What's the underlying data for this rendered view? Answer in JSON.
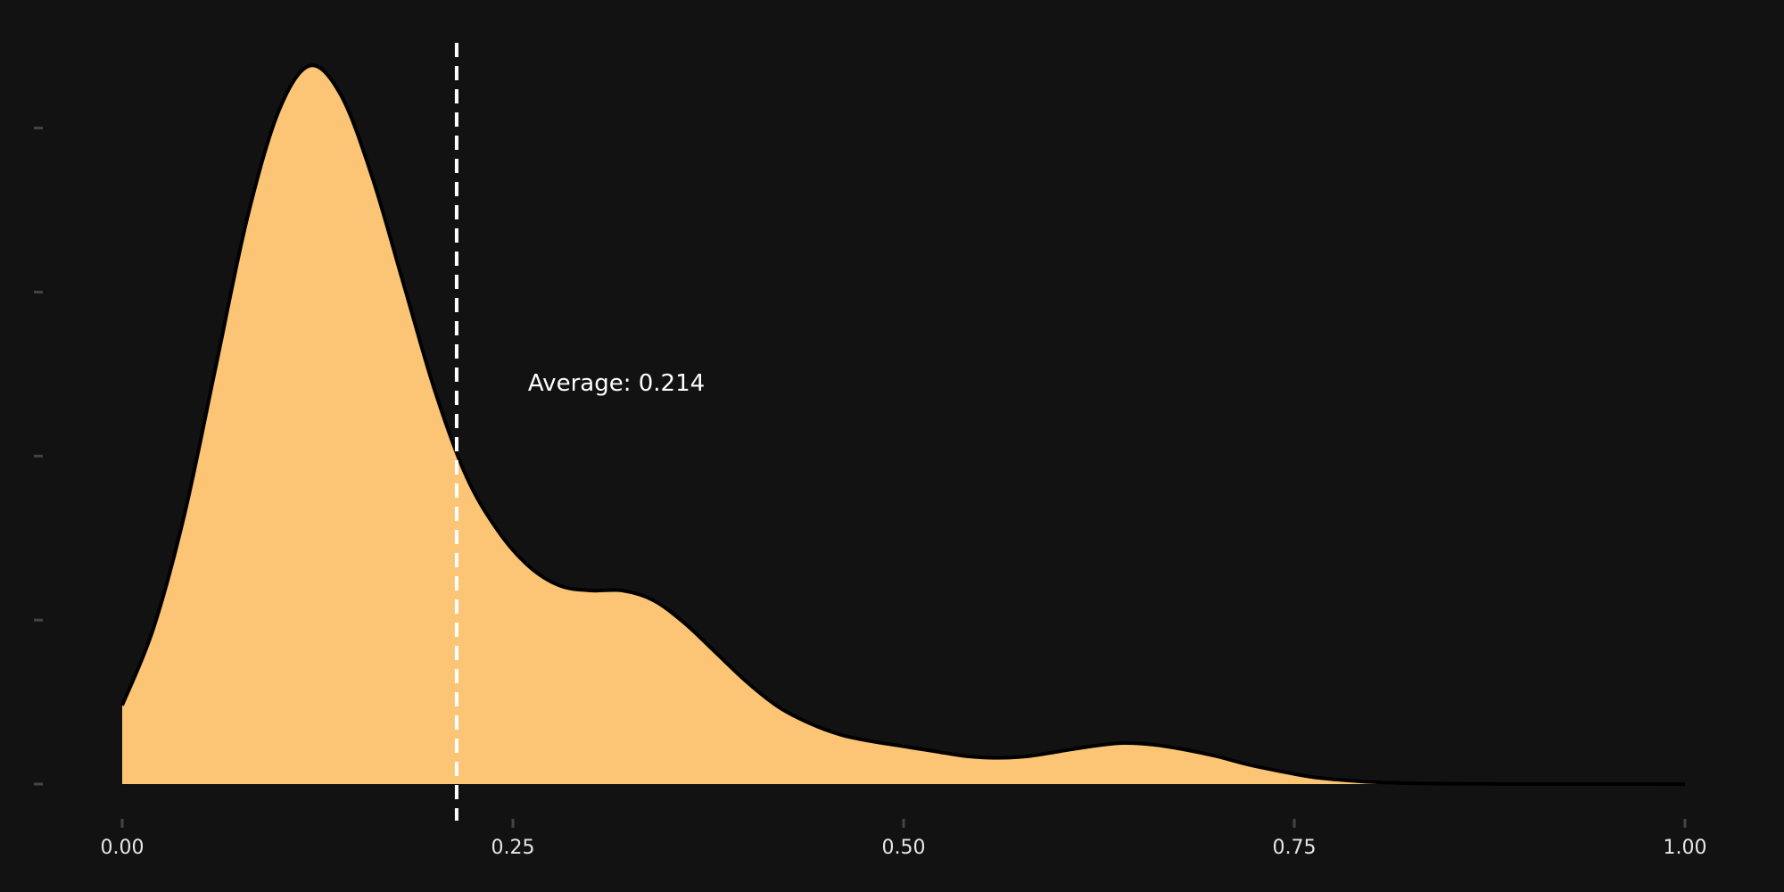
{
  "chart_data": {
    "type": "area",
    "title": "",
    "xlabel": "",
    "ylabel": "",
    "xlim": [
      0,
      1
    ],
    "ylim": [
      0,
      4.4
    ],
    "grid": false,
    "x_ticks": [
      0,
      0.25,
      0.5,
      0.75,
      1
    ],
    "x_tick_labels": [
      "0.00",
      "0.25",
      "0.50",
      "0.75",
      "1.00"
    ],
    "y_ticks": [
      0,
      1,
      2,
      3,
      4
    ],
    "x": [
      0,
      0.02,
      0.04,
      0.06,
      0.08,
      0.1,
      0.12,
      0.14,
      0.16,
      0.18,
      0.2,
      0.22,
      0.24,
      0.26,
      0.28,
      0.3,
      0.32,
      0.34,
      0.36,
      0.38,
      0.4,
      0.42,
      0.44,
      0.46,
      0.48,
      0.5,
      0.52,
      0.54,
      0.56,
      0.58,
      0.6,
      0.62,
      0.64,
      0.66,
      0.68,
      0.7,
      0.72,
      0.74,
      0.76,
      0.78,
      0.8,
      0.82,
      0.84,
      0.86,
      0.88,
      0.9,
      0.95,
      1.0
    ],
    "density": [
      0.48,
      0.95,
      1.65,
      2.55,
      3.45,
      4.1,
      4.38,
      4.2,
      3.7,
      3.05,
      2.4,
      1.88,
      1.55,
      1.33,
      1.21,
      1.18,
      1.18,
      1.12,
      0.98,
      0.8,
      0.62,
      0.47,
      0.37,
      0.3,
      0.26,
      0.23,
      0.2,
      0.17,
      0.16,
      0.17,
      0.2,
      0.23,
      0.25,
      0.24,
      0.21,
      0.17,
      0.12,
      0.08,
      0.045,
      0.025,
      0.012,
      0.006,
      0.003,
      0.0015,
      0.001,
      0.0007,
      0.0004,
      0.0003
    ],
    "fill_color": "#fbc575",
    "line_color": "#000000",
    "mean": 0.214,
    "annotation": "Average: 0.214",
    "annotation_color": "#ffffff",
    "background": "#121212",
    "tick_color": "#444444"
  }
}
